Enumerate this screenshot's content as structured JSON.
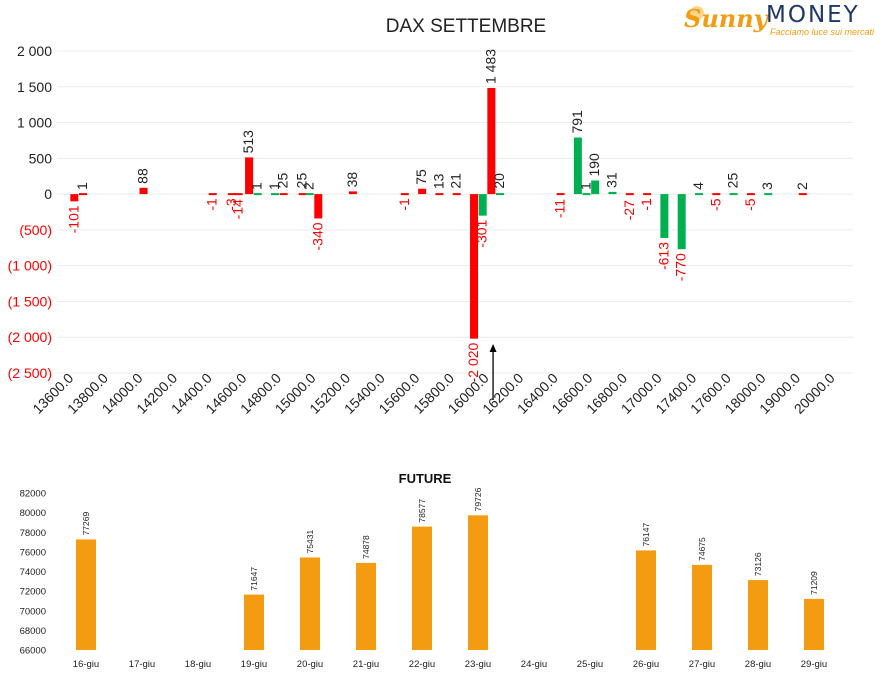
{
  "logo": {
    "word1": "Sunny",
    "word2": "MONEY",
    "tagline": "Facciamo luce sui mercati",
    "colors": {
      "sun": "#f39c12",
      "money": "#1f3864"
    }
  },
  "chart_data": [
    {
      "type": "bar",
      "title": "DAX SETTEMBRE",
      "categories": [
        "13600.0",
        "13800.0",
        "14000.0",
        "14200.0",
        "14400.0",
        "14600.0",
        "14800.0",
        "15000.0",
        "15200.0",
        "15400.0",
        "15600.0",
        "15800.0",
        "16000.0",
        "16200.0",
        "16400.0",
        "16600.0",
        "16800.0",
        "17000.0",
        "17400.0",
        "17600.0",
        "18000.0",
        "19000.0",
        "20000.0"
      ],
      "ylim": [
        -2500,
        2000
      ],
      "y_ticks": [
        2000,
        1500,
        1000,
        500,
        0,
        -500,
        -1000,
        -1500,
        -2000,
        -2500
      ],
      "y_tick_labels": [
        "2 000",
        "1 500",
        "1 000",
        "500",
        "0",
        "(500)",
        "(1 000)",
        "(1 500)",
        "(2 000)",
        "(2 500)"
      ],
      "colors": {
        "put": "#ff0000",
        "call": "#00b050",
        "negative_tick": "#ff0000"
      },
      "series": [
        {
          "values": [
            {
              "x": 0.5,
              "v": -101,
              "label": "-101",
              "color": "put"
            },
            {
              "x": 0.75,
              "v": 1,
              "label": "1",
              "color": "put"
            },
            {
              "x": 2.5,
              "v": 88,
              "label": "88",
              "color": "put"
            },
            {
              "x": 4.5,
              "v": -1,
              "label": "-1",
              "color": "put"
            },
            {
              "x": 5.05,
              "v": -3,
              "label": "-3",
              "color": "put"
            },
            {
              "x": 5.25,
              "v": -14,
              "label": "-14",
              "color": "put"
            },
            {
              "x": 5.55,
              "v": 513,
              "label": "513",
              "color": "put"
            },
            {
              "x": 5.8,
              "v": 1,
              "label": "1",
              "color": "call"
            },
            {
              "x": 6.3,
              "v": 1,
              "label": "1",
              "color": "call"
            },
            {
              "x": 6.55,
              "v": 25,
              "label": "25",
              "color": "put"
            },
            {
              "x": 7.1,
              "v": 25,
              "label": "25",
              "color": "put"
            },
            {
              "x": 7.3,
              "v": 2,
              "label": "2",
              "color": "call"
            },
            {
              "x": 7.55,
              "v": -340,
              "label": "-340",
              "color": "put"
            },
            {
              "x": 8.55,
              "v": 38,
              "label": "38",
              "color": "put"
            },
            {
              "x": 10.05,
              "v": -1,
              "label": "-1",
              "color": "put"
            },
            {
              "x": 10.55,
              "v": 75,
              "label": "75",
              "color": "put"
            },
            {
              "x": 11.05,
              "v": 13,
              "label": "13",
              "color": "put"
            },
            {
              "x": 11.55,
              "v": 21,
              "label": "21",
              "color": "put"
            },
            {
              "x": 12.05,
              "v": -2020,
              "label": "-2 020",
              "color": "put"
            },
            {
              "x": 12.3,
              "v": -301,
              "label": "-301",
              "color": "call"
            },
            {
              "x": 12.55,
              "v": 1483,
              "label": "1 483",
              "color": "put"
            },
            {
              "x": 12.8,
              "v": 20,
              "label": "20",
              "color": "call"
            },
            {
              "x": 14.55,
              "v": -11,
              "label": "-11",
              "color": "put"
            },
            {
              "x": 15.05,
              "v": 791,
              "label": "791",
              "color": "call"
            },
            {
              "x": 15.3,
              "v": 1,
              "label": "1",
              "color": "call"
            },
            {
              "x": 15.55,
              "v": 190,
              "label": "190",
              "color": "call"
            },
            {
              "x": 16.05,
              "v": 31,
              "label": "31",
              "color": "call"
            },
            {
              "x": 16.55,
              "v": -27,
              "label": "-27",
              "color": "put"
            },
            {
              "x": 17.05,
              "v": -1,
              "label": "-1",
              "color": "put"
            },
            {
              "x": 17.55,
              "v": -613,
              "label": "-613",
              "color": "call"
            },
            {
              "x": 18.05,
              "v": -770,
              "label": "-770",
              "color": "call"
            },
            {
              "x": 18.55,
              "v": 4,
              "label": "4",
              "color": "call"
            },
            {
              "x": 19.05,
              "v": -5,
              "label": "-5",
              "color": "put"
            },
            {
              "x": 19.55,
              "v": 25,
              "label": "25",
              "color": "call"
            },
            {
              "x": 20.05,
              "v": -5,
              "label": "-5",
              "color": "put"
            },
            {
              "x": 20.55,
              "v": 3,
              "label": "3",
              "color": "call"
            },
            {
              "x": 21.55,
              "v": 2,
              "label": "2",
              "color": "put"
            }
          ]
        }
      ]
    },
    {
      "type": "bar",
      "title": "FUTURE",
      "categories": [
        "16-giu",
        "17-giu",
        "18-giu",
        "19-giu",
        "20-giu",
        "21-giu",
        "22-giu",
        "23-giu",
        "24-giu",
        "25-giu",
        "26-giu",
        "27-giu",
        "28-giu",
        "29-giu"
      ],
      "series": [
        {
          "values": [
            77269,
            null,
            null,
            71647,
            75431,
            74878,
            78577,
            79726,
            null,
            null,
            76147,
            74675,
            73126,
            71209
          ]
        }
      ],
      "ylim": [
        66000,
        82000
      ],
      "y_ticks": [
        66000,
        68000,
        70000,
        72000,
        74000,
        76000,
        78000,
        80000,
        82000
      ],
      "color": "#f39c12"
    }
  ]
}
